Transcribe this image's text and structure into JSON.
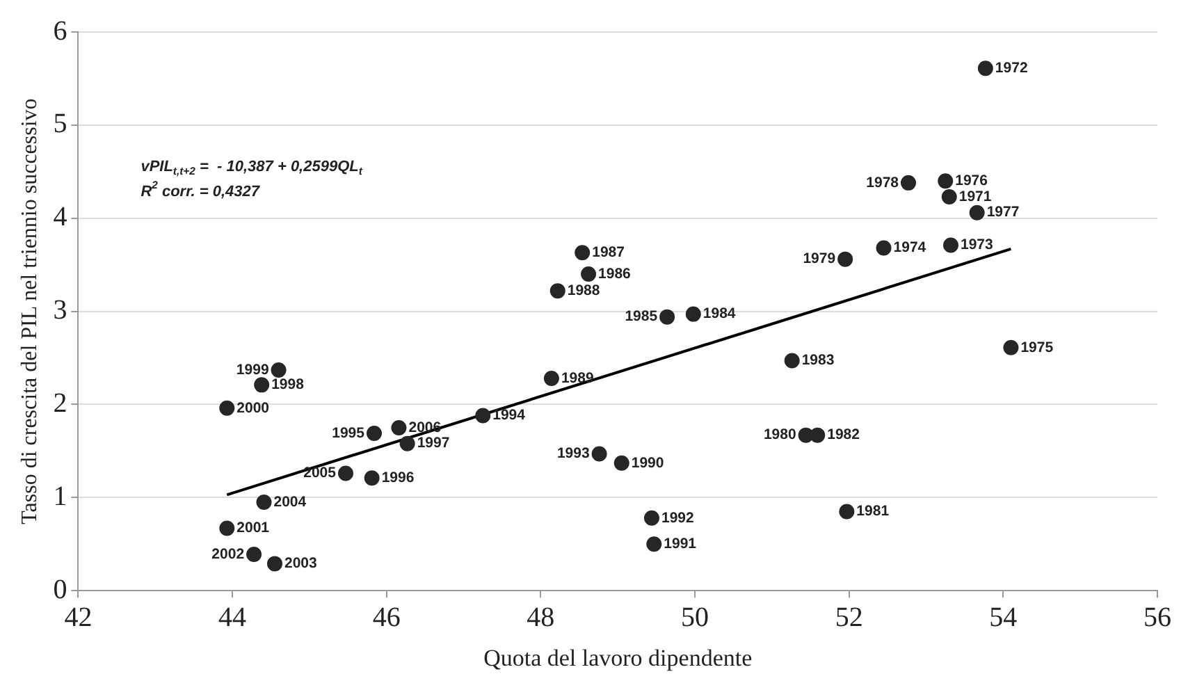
{
  "chart_data": {
    "type": "scatter",
    "xlabel": "Quota del lavoro dipendente",
    "ylabel": "Tasso di crescita del PIL nel triennio successivo",
    "xlim": [
      42,
      56
    ],
    "xticks": [
      42,
      44,
      46,
      48,
      50,
      52,
      54,
      56
    ],
    "ylim": [
      0,
      6
    ],
    "yticks": [
      0,
      1,
      2,
      3,
      4,
      5,
      6
    ],
    "grid": "y",
    "legend": false,
    "series": [
      {
        "marker": "circle",
        "color": "#262626",
        "x": [
          53.3,
          53.77,
          53.32,
          52.45,
          54.1,
          53.25,
          53.66,
          52.77,
          51.95,
          51.44,
          51.97,
          51.59,
          51.26,
          49.98,
          49.64,
          48.62,
          48.54,
          48.22,
          48.14,
          49.05,
          49.47,
          49.44,
          48.76,
          47.25,
          45.84,
          45.81,
          46.27,
          44.38,
          44.6,
          43.93,
          43.93,
          44.28,
          44.55,
          44.41,
          45.47,
          46.16
        ],
        "values": [
          4.23,
          5.61,
          3.71,
          3.68,
          2.61,
          4.4,
          4.06,
          4.38,
          3.56,
          1.67,
          0.85,
          1.67,
          2.47,
          2.97,
          2.94,
          3.4,
          3.63,
          3.22,
          2.28,
          1.37,
          0.5,
          0.78,
          1.47,
          1.88,
          1.69,
          1.21,
          1.58,
          2.21,
          2.37,
          1.96,
          0.67,
          0.39,
          0.29,
          0.95,
          1.26,
          1.75
        ]
      },
      {
        "type": "line",
        "color": "#000000",
        "x": [
          43.93,
          54.1
        ],
        "values": [
          1.03,
          3.67
        ]
      }
    ],
    "annotations": [
      "vPIL$_{t,t+2}$ =  - 10,387 + 0,2599QL$_{t}$",
      "R$^{2}$ corr. = 0,4327",
      {
        "text": "1971",
        "x": 53.3,
        "y": 4.23
      },
      {
        "text": "1972",
        "x": 53.77,
        "y": 5.61
      },
      {
        "text": "1973",
        "x": 53.32,
        "y": 3.71
      },
      {
        "text": "1974",
        "x": 52.45,
        "y": 3.68
      },
      {
        "text": "1975",
        "x": 54.1,
        "y": 2.61
      },
      {
        "text": "1976",
        "x": 53.25,
        "y": 4.4
      },
      {
        "text": "1977",
        "x": 53.66,
        "y": 4.06
      },
      {
        "text": "1978",
        "x": 52.77,
        "y": 4.38
      },
      {
        "text": "1979",
        "x": 51.95,
        "y": 3.56
      },
      {
        "text": "1980",
        "x": 51.44,
        "y": 1.67
      },
      {
        "text": "1981",
        "x": 51.97,
        "y": 0.85
      },
      {
        "text": "1982",
        "x": 51.59,
        "y": 1.67
      },
      {
        "text": "1983",
        "x": 51.26,
        "y": 2.47
      },
      {
        "text": "1984",
        "x": 49.98,
        "y": 2.97
      },
      {
        "text": "1985",
        "x": 49.64,
        "y": 2.94
      },
      {
        "text": "1986",
        "x": 48.62,
        "y": 3.4
      },
      {
        "text": "1987",
        "x": 48.54,
        "y": 3.63
      },
      {
        "text": "1988",
        "x": 48.22,
        "y": 3.22
      },
      {
        "text": "1989",
        "x": 48.14,
        "y": 2.28
      },
      {
        "text": "1990",
        "x": 49.05,
        "y": 1.37
      },
      {
        "text": "1991",
        "x": 49.47,
        "y": 0.5
      },
      {
        "text": "1992",
        "x": 49.44,
        "y": 0.78
      },
      {
        "text": "1993",
        "x": 48.76,
        "y": 1.47
      },
      {
        "text": "1994",
        "x": 47.25,
        "y": 1.88
      },
      {
        "text": "1995",
        "x": 45.84,
        "y": 1.69
      },
      {
        "text": "1996",
        "x": 45.81,
        "y": 1.21
      },
      {
        "text": "1997",
        "x": 46.27,
        "y": 1.58
      },
      {
        "text": "1998",
        "x": 44.38,
        "y": 2.21
      },
      {
        "text": "1999",
        "x": 44.6,
        "y": 2.37
      },
      {
        "text": "2000",
        "x": 43.93,
        "y": 1.96
      },
      {
        "text": "2001",
        "x": 43.93,
        "y": 0.67
      },
      {
        "text": "2002",
        "x": 44.28,
        "y": 0.39
      },
      {
        "text": "2003",
        "x": 44.55,
        "y": 0.29
      },
      {
        "text": "2004",
        "x": 44.41,
        "y": 0.95
      },
      {
        "text": "2005",
        "x": 45.47,
        "y": 1.26
      },
      {
        "text": "2006",
        "x": 46.16,
        "y": 1.75
      }
    ]
  }
}
